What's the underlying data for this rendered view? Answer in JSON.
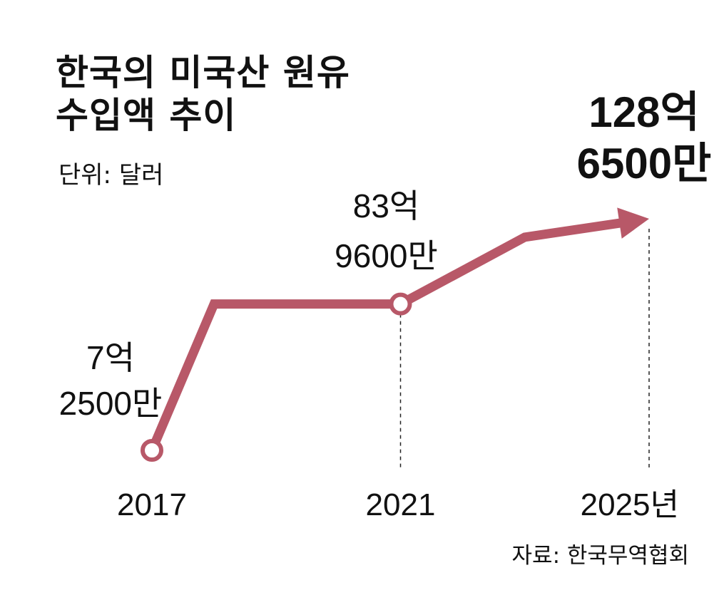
{
  "header": {
    "title_line1": "한국의 미국산 원유",
    "title_line2": "수입액 추이",
    "unit": "단위: 달러"
  },
  "source": "자료: 한국무역협회",
  "colors": {
    "line": "#b85868",
    "text": "#111111",
    "background": "#ffffff"
  },
  "chart_data": {
    "type": "line",
    "title": "한국의 미국산 원유 수입액 추이",
    "unit": "단위: 달러",
    "x": [
      2017,
      2018,
      2021,
      2023,
      2025
    ],
    "values": [
      725000000,
      8396000000,
      8396000000,
      11900000000,
      12865000000
    ],
    "labeled_points": [
      {
        "x": 2017,
        "value": 725000000,
        "label_line1": "7억",
        "label_line2": "2500만",
        "marker": "circle",
        "emphasis": false
      },
      {
        "x": 2021,
        "value": 8396000000,
        "label_line1": "83억",
        "label_line2": "9600만",
        "marker": "circle",
        "emphasis": false
      },
      {
        "x": 2025,
        "value": 12865000000,
        "label_line1": "128억",
        "label_line2": "6500만",
        "marker": "arrow",
        "emphasis": true
      }
    ],
    "x_tick_labels": [
      {
        "x": 2017,
        "label": "2017"
      },
      {
        "x": 2021,
        "label": "2021"
      },
      {
        "x": 2025,
        "label": "2025년"
      }
    ],
    "dashed_guides_at": [
      2021,
      2025
    ],
    "grid": false,
    "legend": "none"
  }
}
